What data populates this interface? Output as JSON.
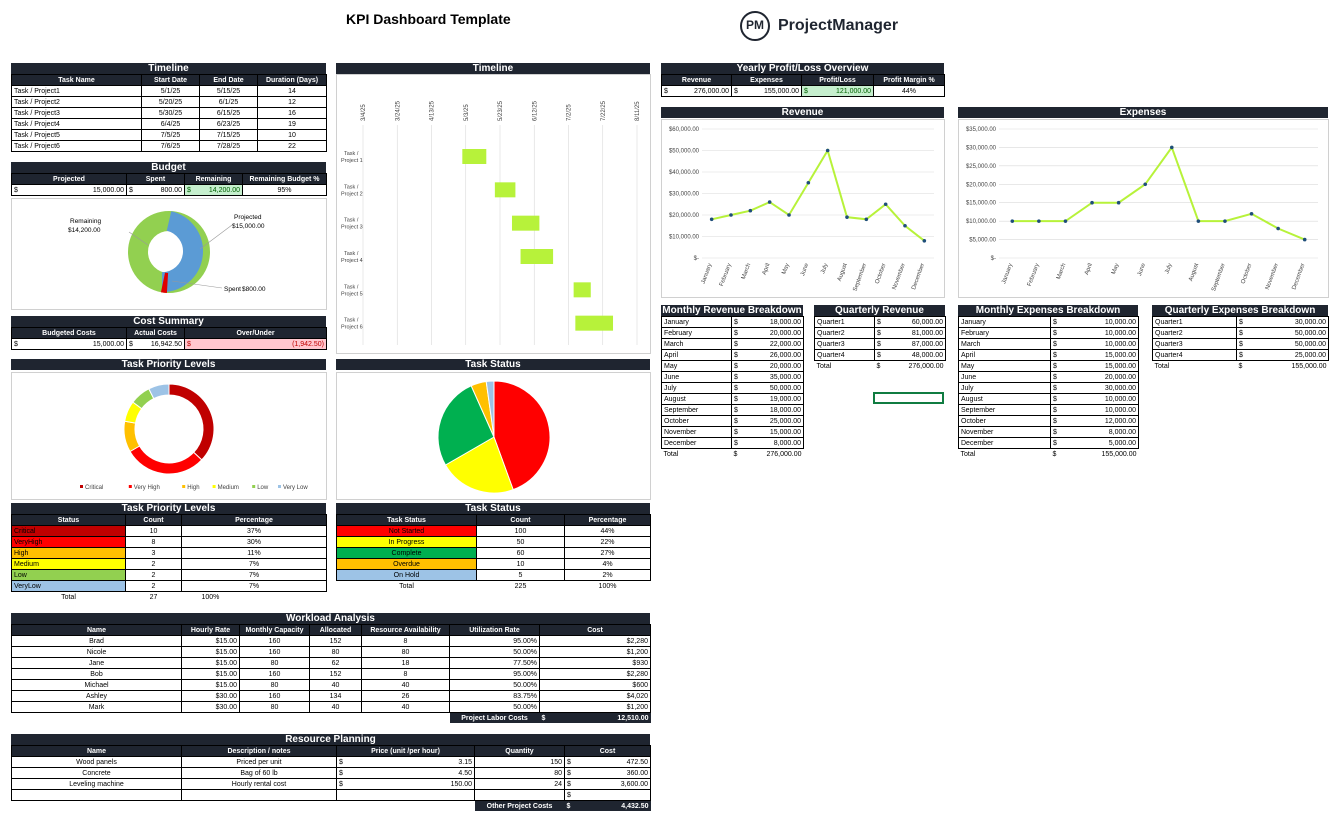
{
  "title": "KPI Dashboard Template",
  "brand": {
    "logo_mark": "PM",
    "name": "ProjectManager"
  },
  "timeline_table": {
    "title": "Timeline",
    "headers": [
      "Task Name",
      "Start Date",
      "End Date",
      "Duration (Days)"
    ],
    "rows": [
      [
        "Task / Project1",
        "5/1/25",
        "5/15/25",
        "14"
      ],
      [
        "Task / Project2",
        "5/20/25",
        "6/1/25",
        "12"
      ],
      [
        "Task / Project3",
        "5/30/25",
        "6/15/25",
        "16"
      ],
      [
        "Task / Project4",
        "6/4/25",
        "6/23/25",
        "19"
      ],
      [
        "Task / Project5",
        "7/5/25",
        "7/15/25",
        "10"
      ],
      [
        "Task / Project6",
        "7/6/25",
        "7/28/25",
        "22"
      ]
    ]
  },
  "budget": {
    "title": "Budget",
    "headers": [
      "Projected",
      "Spent",
      "Remaining",
      "Remaining Budget %"
    ],
    "projected": "15,000.00",
    "spent": "800.00",
    "remaining": "14,200.00",
    "remaining_pct": "95%",
    "currency": "$",
    "labels": {
      "remaining": "Remaining",
      "remaining_value": "$14,200.00",
      "projected": "Projected",
      "projected_value": "$15,000.00",
      "spent": "Spent",
      "spent_value": "$800.00"
    }
  },
  "cost_summary": {
    "title": "Cost Summary",
    "headers": [
      "Budgeted Costs",
      "Actual Costs",
      "Over/Under"
    ],
    "budgeted": "15,000.00",
    "actual": "16,942.50",
    "over_under": "(1,942.50)",
    "currency": "$"
  },
  "gantt": {
    "title": "Timeline",
    "dates": [
      "3/4/25",
      "3/24/25",
      "4/13/25",
      "5/3/25",
      "5/23/25",
      "6/12/25",
      "7/2/25",
      "7/22/25",
      "8/11/25"
    ],
    "tasks": [
      "Task / Project 1",
      "Task / Project 2",
      "Task / Project 3",
      "Task / Project 4",
      "Task / Project 5",
      "Task / Project 6"
    ],
    "bar_color": "#b7f23a"
  },
  "profit_overview": {
    "title": "Yearly Profit/Loss Overview",
    "headers": [
      "Revenue",
      "Expenses",
      "Profit/Loss",
      "Profit Margin %"
    ],
    "revenue": "276,000.00",
    "expenses": "155,000.00",
    "profit": "121,000.00",
    "margin": "44%",
    "currency": "$"
  },
  "revenue_chart_title": "Revenue",
  "expenses_chart_title": "Expenses",
  "chart_data": [
    {
      "type": "line",
      "title": "Revenue",
      "categories": [
        "January",
        "February",
        "March",
        "April",
        "May",
        "June",
        "July",
        "August",
        "September",
        "October",
        "November",
        "December"
      ],
      "values": [
        18000,
        20000,
        22000,
        26000,
        20000,
        35000,
        50000,
        19000,
        18000,
        25000,
        15000,
        8000
      ],
      "y_ticks": [
        "$60,000.00",
        "$50,000.00",
        "$40,000.00",
        "$30,000.00",
        "$20,000.00",
        "$10,000.00",
        "$-"
      ],
      "ylim": [
        0,
        60000
      ],
      "line_color": "#b7f23a",
      "marker_color": "#1f4e79",
      "grid": true
    },
    {
      "type": "line",
      "title": "Expenses",
      "categories": [
        "January",
        "February",
        "March",
        "April",
        "May",
        "June",
        "July",
        "August",
        "September",
        "October",
        "November",
        "December"
      ],
      "values": [
        10000,
        10000,
        10000,
        15000,
        15000,
        20000,
        30000,
        10000,
        10000,
        12000,
        8000,
        5000
      ],
      "y_ticks": [
        "$35,000.00",
        "$30,000.00",
        "$25,000.00",
        "$20,000.00",
        "$15,000.00",
        "$10,000.00",
        "$5,000.00",
        "$-"
      ],
      "ylim": [
        0,
        35000
      ],
      "line_color": "#b7f23a",
      "marker_color": "#1f4e79",
      "grid": true
    },
    {
      "type": "pie",
      "title": "Task Priority Levels",
      "donut": true,
      "labels": [
        "Critical",
        "Very High",
        "High",
        "Medium",
        "Low",
        "Very Low"
      ],
      "values": [
        10,
        8,
        3,
        2,
        2,
        2
      ],
      "colors": [
        "#c00000",
        "#ff0000",
        "#ffc000",
        "#ffff00",
        "#92d050",
        "#9dc3e6"
      ]
    },
    {
      "type": "pie",
      "title": "Task Status",
      "labels": [
        "Not Started",
        "In Progress",
        "Complete",
        "Overdue",
        "On Hold"
      ],
      "values": [
        100,
        50,
        60,
        10,
        5
      ],
      "colors": [
        "#ff0000",
        "#ffff00",
        "#00b050",
        "#ffc000",
        "#9dc3e6"
      ]
    }
  ],
  "priority_legend": [
    "Critical",
    "Very High",
    "High",
    "Medium",
    "Low",
    "Very Low"
  ],
  "priority_chart_title": "Task Priority Levels",
  "status_chart_title": "Task Status",
  "monthly_revenue": {
    "title": "Monthly Revenue Breakdown",
    "rows": [
      [
        "January",
        "18,000.00"
      ],
      [
        "February",
        "20,000.00"
      ],
      [
        "March",
        "22,000.00"
      ],
      [
        "April",
        "26,000.00"
      ],
      [
        "May",
        "20,000.00"
      ],
      [
        "June",
        "35,000.00"
      ],
      [
        "July",
        "50,000.00"
      ],
      [
        "August",
        "19,000.00"
      ],
      [
        "September",
        "18,000.00"
      ],
      [
        "October",
        "25,000.00"
      ],
      [
        "November",
        "15,000.00"
      ],
      [
        "December",
        "8,000.00"
      ]
    ],
    "total_label": "Total",
    "total": "276,000.00"
  },
  "quarterly_revenue": {
    "title": "Quarterly Revenue",
    "rows": [
      [
        "Quarter1",
        "60,000.00"
      ],
      [
        "Quarter2",
        "81,000.00"
      ],
      [
        "Quarter3",
        "87,000.00"
      ],
      [
        "Quarter4",
        "48,000.00"
      ]
    ],
    "total_label": "Total",
    "total": "276,000.00"
  },
  "monthly_expenses": {
    "title": "Monthly Expenses Breakdown",
    "rows": [
      [
        "January",
        "10,000.00"
      ],
      [
        "February",
        "10,000.00"
      ],
      [
        "March",
        "10,000.00"
      ],
      [
        "April",
        "15,000.00"
      ],
      [
        "May",
        "15,000.00"
      ],
      [
        "June",
        "20,000.00"
      ],
      [
        "July",
        "30,000.00"
      ],
      [
        "August",
        "10,000.00"
      ],
      [
        "September",
        "10,000.00"
      ],
      [
        "October",
        "12,000.00"
      ],
      [
        "November",
        "8,000.00"
      ],
      [
        "December",
        "5,000.00"
      ]
    ],
    "total_label": "Total",
    "total": "155,000.00"
  },
  "quarterly_expenses": {
    "title": "Quarterly Expenses Breakdown",
    "rows": [
      [
        "Quarter1",
        "30,000.00"
      ],
      [
        "Quarter2",
        "50,000.00"
      ],
      [
        "Quarter3",
        "50,000.00"
      ],
      [
        "Quarter4",
        "25,000.00"
      ]
    ],
    "total_label": "Total",
    "total": "155,000.00"
  },
  "priority_table": {
    "title": "Task Priority Levels",
    "headers": [
      "Status",
      "Count",
      "Percentage"
    ],
    "rows": [
      [
        "Critical",
        "10",
        "37%",
        "#c00000"
      ],
      [
        "VeryHigh",
        "8",
        "30%",
        "#ff0000"
      ],
      [
        "High",
        "3",
        "11%",
        "#ffc000"
      ],
      [
        "Medium",
        "2",
        "7%",
        "#ffff00"
      ],
      [
        "Low",
        "2",
        "7%",
        "#92d050"
      ],
      [
        "VeryLow",
        "2",
        "7%",
        "#9dc3e6"
      ]
    ],
    "total_label": "Total",
    "total_count": "27",
    "total_pct": "100%"
  },
  "status_table": {
    "title": "Task Status",
    "headers": [
      "Task Status",
      "Count",
      "Percentage"
    ],
    "rows": [
      [
        "Not Started",
        "100",
        "44%",
        "#ff0000"
      ],
      [
        "In Progress",
        "50",
        "22%",
        "#ffff00"
      ],
      [
        "Complete",
        "60",
        "27%",
        "#00b050"
      ],
      [
        "Overdue",
        "10",
        "4%",
        "#ffc000"
      ],
      [
        "On Hold",
        "5",
        "2%",
        "#9dc3e6"
      ]
    ],
    "total_label": "Total",
    "total_count": "225",
    "total_pct": "100%"
  },
  "workload": {
    "title": "Workload Analysis",
    "headers": [
      "Name",
      "Hourly Rate",
      "Monthly Capacity",
      "Allocated",
      "Resource Availability",
      "Utilization Rate",
      "Cost"
    ],
    "rows": [
      [
        "Brad",
        "$15.00",
        "160",
        "152",
        "8",
        "95.00%",
        "$2,280"
      ],
      [
        "Nicole",
        "$15.00",
        "160",
        "80",
        "80",
        "50.00%",
        "$1,200"
      ],
      [
        "Jane",
        "$15.00",
        "80",
        "62",
        "18",
        "77.50%",
        "$930"
      ],
      [
        "Bob",
        "$15.00",
        "160",
        "152",
        "8",
        "95.00%",
        "$2,280"
      ],
      [
        "Michael",
        "$15.00",
        "80",
        "40",
        "40",
        "50.00%",
        "$600"
      ],
      [
        "Ashley",
        "$30.00",
        "160",
        "134",
        "26",
        "83.75%",
        "$4,020"
      ],
      [
        "Mark",
        "$30.00",
        "80",
        "40",
        "40",
        "50.00%",
        "$1,200"
      ]
    ],
    "total_label": "Project Labor Costs",
    "total_currency": "$",
    "total": "12,510.00"
  },
  "resource_planning": {
    "title": "Resource Planning",
    "headers": [
      "Name",
      "Description / notes",
      "Price (unit /per hour)",
      "Quantity",
      "Cost"
    ],
    "rows": [
      [
        "Wood panels",
        "Priced per unit",
        "3.15",
        "150",
        "472.50"
      ],
      [
        "Concrete",
        "Bag of 60 lb",
        "4.50",
        "80",
        "360.00"
      ],
      [
        "Leveling machine",
        "Hourly rental cost",
        "150.00",
        "24",
        "3,600.00"
      ],
      [
        "",
        "",
        "",
        "",
        ""
      ]
    ],
    "currency": "$",
    "total_label": "Other Project Costs",
    "total": "4,432.50"
  }
}
